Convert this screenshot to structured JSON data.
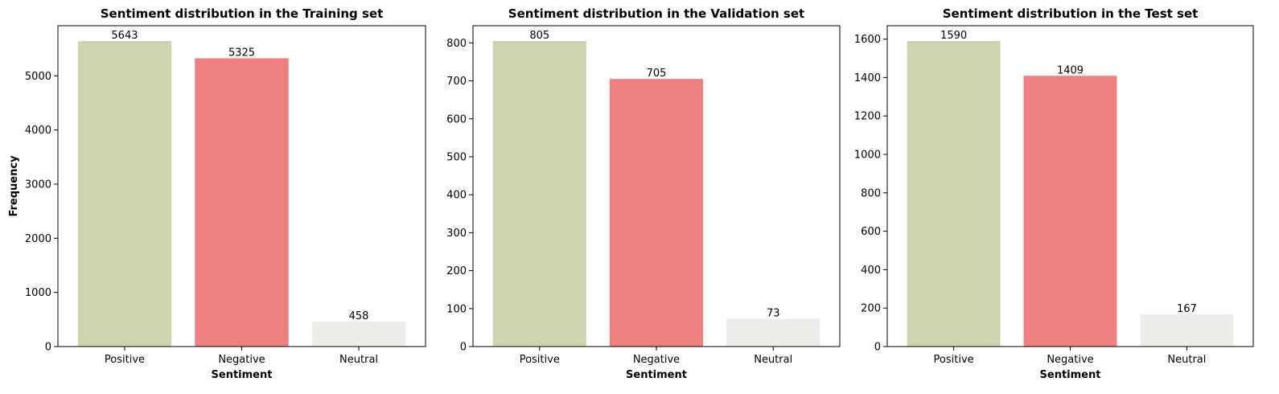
{
  "chart_data": [
    {
      "type": "bar",
      "title": "Sentiment distribution in the Training set",
      "xlabel": "Sentiment",
      "ylabel": "Frequency",
      "categories": [
        "Positive",
        "Negative",
        "Neutral"
      ],
      "values": [
        5643,
        5325,
        458
      ],
      "data_labels": [
        "5643",
        "5325",
        "458"
      ],
      "colors": [
        "#cdd5ae",
        "#f07f7f",
        "#ecede8"
      ],
      "ylim": [
        0,
        5925.15
      ],
      "yticks": [
        0,
        1000,
        2000,
        3000,
        4000,
        5000
      ],
      "ytick_labels": [
        "0",
        "1000",
        "2000",
        "3000",
        "4000",
        "5000"
      ],
      "grid": false,
      "legend": "none"
    },
    {
      "type": "bar",
      "title": "Sentiment distribution in the Validation set",
      "xlabel": "Sentiment",
      "ylabel": "",
      "categories": [
        "Positive",
        "Negative",
        "Neutral"
      ],
      "values": [
        805,
        705,
        73
      ],
      "data_labels": [
        "805",
        "705",
        "73"
      ],
      "colors": [
        "#cdd5ae",
        "#f07f7f",
        "#ecede8"
      ],
      "ylim": [
        0,
        845.25
      ],
      "yticks": [
        0,
        100,
        200,
        300,
        400,
        500,
        600,
        700,
        800
      ],
      "ytick_labels": [
        "0",
        "100",
        "200",
        "300",
        "400",
        "500",
        "600",
        "700",
        "800"
      ],
      "grid": false,
      "legend": "none"
    },
    {
      "type": "bar",
      "title": "Sentiment distribution in the Test set",
      "xlabel": "Sentiment",
      "ylabel": "",
      "categories": [
        "Positive",
        "Negative",
        "Neutral"
      ],
      "values": [
        1590,
        1409,
        167
      ],
      "data_labels": [
        "1590",
        "1409",
        "167"
      ],
      "colors": [
        "#cdd5ae",
        "#f07f7f",
        "#ecede8"
      ],
      "ylim": [
        0,
        1669.5
      ],
      "yticks": [
        0,
        200,
        400,
        600,
        800,
        1000,
        1200,
        1400,
        1600
      ],
      "ytick_labels": [
        "0",
        "200",
        "400",
        "600",
        "800",
        "1000",
        "1200",
        "1400",
        "1600"
      ],
      "grid": false,
      "legend": "none"
    }
  ]
}
